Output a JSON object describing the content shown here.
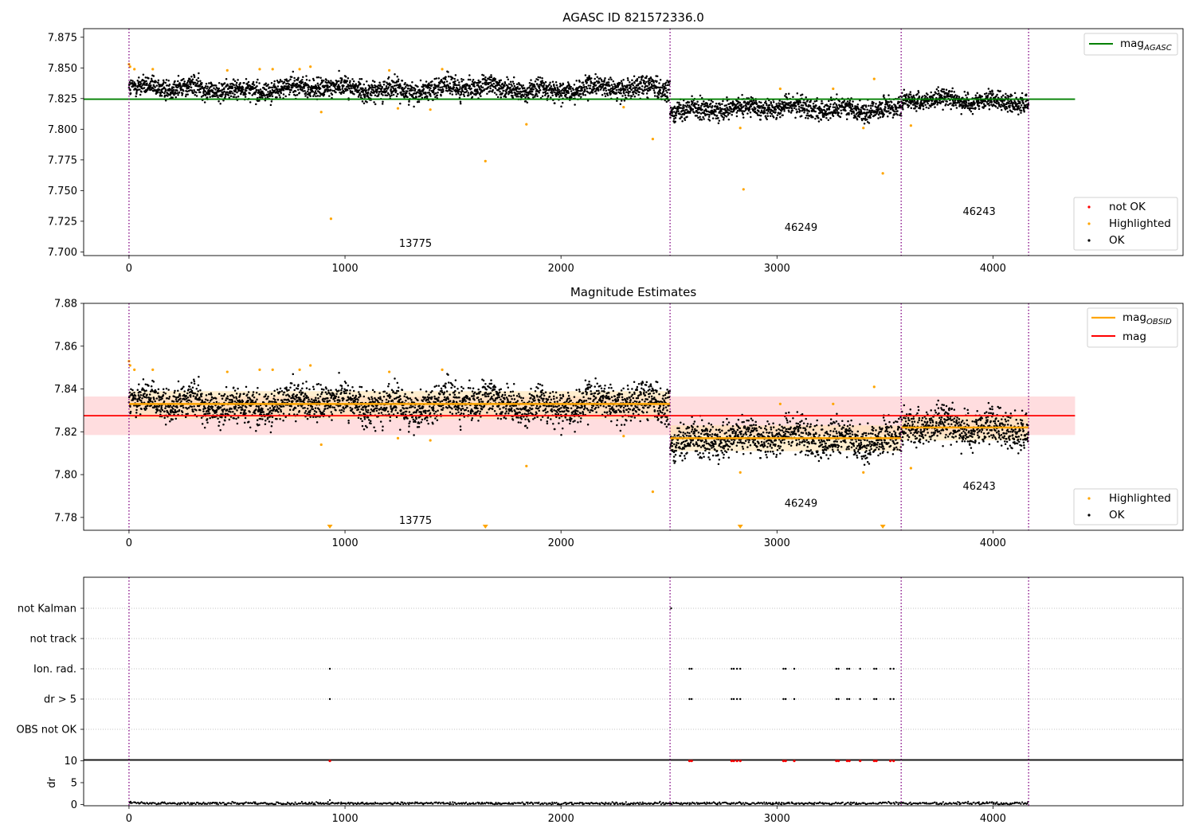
{
  "chart_data": [
    {
      "type": "scatter",
      "title": "AGASC ID 821572336.0",
      "xlim": [
        -210,
        4880
      ],
      "ylim": [
        7.697,
        7.882
      ],
      "xticks": [
        0,
        1000,
        2000,
        3000,
        4000
      ],
      "yticks": [
        7.7,
        7.725,
        7.75,
        7.775,
        7.8,
        7.825,
        7.85,
        7.875
      ],
      "ytick_labels": [
        "7.700",
        "7.725",
        "7.750",
        "7.775",
        "7.800",
        "7.825",
        "7.850",
        "7.875"
      ],
      "grid": false,
      "obs_boundaries": [
        0,
        2505,
        3575,
        4165
      ],
      "obs_segments": [
        {
          "obsid": "13775",
          "x_start": 0,
          "x_end": 2505,
          "center": 7.833,
          "spread": 0.0075
        },
        {
          "obsid": "46249",
          "x_start": 2505,
          "x_end": 3575,
          "center": 7.817,
          "spread": 0.0075
        },
        {
          "obsid": "46243",
          "x_start": 3575,
          "x_end": 4165,
          "center": 7.823,
          "spread": 0.0065
        }
      ],
      "annotations": [
        {
          "text": "13775",
          "x": 1250,
          "y": 7.704
        },
        {
          "text": "46249",
          "x": 3035,
          "y": 7.717
        },
        {
          "text": "46243",
          "x": 3860,
          "y": 7.73
        }
      ],
      "lines": [
        {
          "name": "mag_AGASC",
          "color": "#008000",
          "x": [
            -210,
            4380
          ],
          "y": [
            7.8245,
            7.8245
          ]
        }
      ],
      "highlighted_points": [
        {
          "x": 0,
          "y": 7.853
        },
        {
          "x": 5,
          "y": 7.851
        },
        {
          "x": 25,
          "y": 7.849
        },
        {
          "x": 110,
          "y": 7.849
        },
        {
          "x": 455,
          "y": 7.848
        },
        {
          "x": 605,
          "y": 7.849
        },
        {
          "x": 665,
          "y": 7.849
        },
        {
          "x": 790,
          "y": 7.849
        },
        {
          "x": 840,
          "y": 7.851
        },
        {
          "x": 890,
          "y": 7.814
        },
        {
          "x": 935,
          "y": 7.727
        },
        {
          "x": 1205,
          "y": 7.848
        },
        {
          "x": 1245,
          "y": 7.817
        },
        {
          "x": 1395,
          "y": 7.816
        },
        {
          "x": 1450,
          "y": 7.849
        },
        {
          "x": 1650,
          "y": 7.774
        },
        {
          "x": 1840,
          "y": 7.804
        },
        {
          "x": 2290,
          "y": 7.818
        },
        {
          "x": 2425,
          "y": 7.792
        },
        {
          "x": 2830,
          "y": 7.801
        },
        {
          "x": 2845,
          "y": 7.751
        },
        {
          "x": 3015,
          "y": 7.833
        },
        {
          "x": 3260,
          "y": 7.833
        },
        {
          "x": 3400,
          "y": 7.801
        },
        {
          "x": 3450,
          "y": 7.841
        },
        {
          "x": 3490,
          "y": 7.764
        },
        {
          "x": 3620,
          "y": 7.803
        }
      ],
      "legend": {
        "placement": "top-right",
        "entries": [
          {
            "label": "mag",
            "subscript": "AGASC",
            "color": "#008000"
          }
        ]
      },
      "legend2": {
        "placement": "lower-right",
        "entries": [
          {
            "label": "not OK",
            "color": "#ff0000"
          },
          {
            "label": "Highlighted",
            "color": "#ffa500"
          },
          {
            "label": "OK",
            "color": "#000000"
          }
        ]
      }
    },
    {
      "type": "scatter",
      "title": "Magnitude Estimates",
      "xlim": [
        -210,
        4880
      ],
      "ylim": [
        7.774,
        7.88
      ],
      "xticks": [
        0,
        1000,
        2000,
        3000,
        4000
      ],
      "yticks": [
        7.78,
        7.8,
        7.82,
        7.84,
        7.86,
        7.88
      ],
      "ytick_labels": [
        "7.78",
        "7.80",
        "7.82",
        "7.84",
        "7.86",
        "7.88"
      ],
      "grid": false,
      "obs_boundaries": [
        0,
        2505,
        3575,
        4165
      ],
      "mag": {
        "value": 7.8275,
        "band": [
          7.8185,
          7.8365
        ],
        "x": [
          -210,
          4380
        ],
        "color": "#ff0000"
      },
      "mag_obsid": [
        {
          "obsid": "13775",
          "x_start": 0,
          "x_end": 2505,
          "value": 7.833,
          "band": [
            7.826,
            7.839
          ]
        },
        {
          "obsid": "46249",
          "x_start": 2505,
          "x_end": 3575,
          "value": 7.817,
          "band": [
            7.811,
            7.823
          ]
        },
        {
          "obsid": "46243",
          "x_start": 3575,
          "x_end": 4165,
          "value": 7.822,
          "band": [
            7.816,
            7.828
          ]
        }
      ],
      "annotations": [
        {
          "text": "13775",
          "x": 1250,
          "y": 7.777
        },
        {
          "text": "46249",
          "x": 3035,
          "y": 7.785
        },
        {
          "text": "46243",
          "x": 3860,
          "y": 7.793
        }
      ],
      "offscale_markers_x": [
        930,
        1650,
        2830,
        3490
      ],
      "legend": {
        "placement": "top-right",
        "entries": [
          {
            "label": "mag",
            "subscript": "OBSID",
            "color": "#ffa500"
          },
          {
            "label": "mag",
            "subscript": "",
            "color": "#ff0000"
          }
        ]
      },
      "legend2": {
        "placement": "lower-right",
        "entries": [
          {
            "label": "Highlighted",
            "color": "#ffa500"
          },
          {
            "label": "OK",
            "color": "#000000"
          }
        ]
      }
    },
    {
      "type": "scatter",
      "title": "",
      "xlim": [
        -210,
        4880
      ],
      "categories": [
        "OBS not OK",
        "dr > 5",
        "Ion. rad.",
        "not track",
        "not Kalman"
      ],
      "obs_boundaries": [
        0,
        2505,
        3575,
        4165
      ],
      "flag_points": {
        "not Kalman": [
          2510
        ],
        "not track": [],
        "Ion. rad.": [
          930,
          2595,
          2605,
          2790,
          2800,
          2815,
          2830,
          3030,
          3040,
          3080,
          3275,
          3285,
          3325,
          3335,
          3385,
          3450,
          3460,
          3525,
          3540
        ],
        "dr > 5": [
          930,
          2595,
          2605,
          2790,
          2800,
          2815,
          2830,
          3030,
          3040,
          3080,
          3275,
          3285,
          3325,
          3335,
          3385,
          3450,
          3460,
          3525,
          3540
        ],
        "OBS not OK": []
      }
    },
    {
      "type": "scatter",
      "title": "",
      "ylabel": "dr",
      "xlim": [
        -210,
        4880
      ],
      "ylim": [
        -0.3,
        10.3
      ],
      "xticks": [
        0,
        1000,
        2000,
        3000,
        4000
      ],
      "yticks": [
        0,
        5,
        10
      ],
      "outlier_points_x": [
        930,
        2595,
        2605,
        2790,
        2800,
        2815,
        2830,
        3030,
        3040,
        3080,
        3275,
        3285,
        3325,
        3335,
        3385,
        3450,
        3460,
        3525,
        3540
      ],
      "outlier_value": 10,
      "baseline_level": 0.25,
      "obs_boundaries": [
        0,
        2505,
        3575,
        4165
      ]
    }
  ],
  "colors": {
    "ok": "#000000",
    "highlighted": "#ffa500",
    "not_ok": "#ff0000",
    "agasc_line": "#008000",
    "obs_boundary": "#800080",
    "mag_band": "#ffd9dc"
  }
}
